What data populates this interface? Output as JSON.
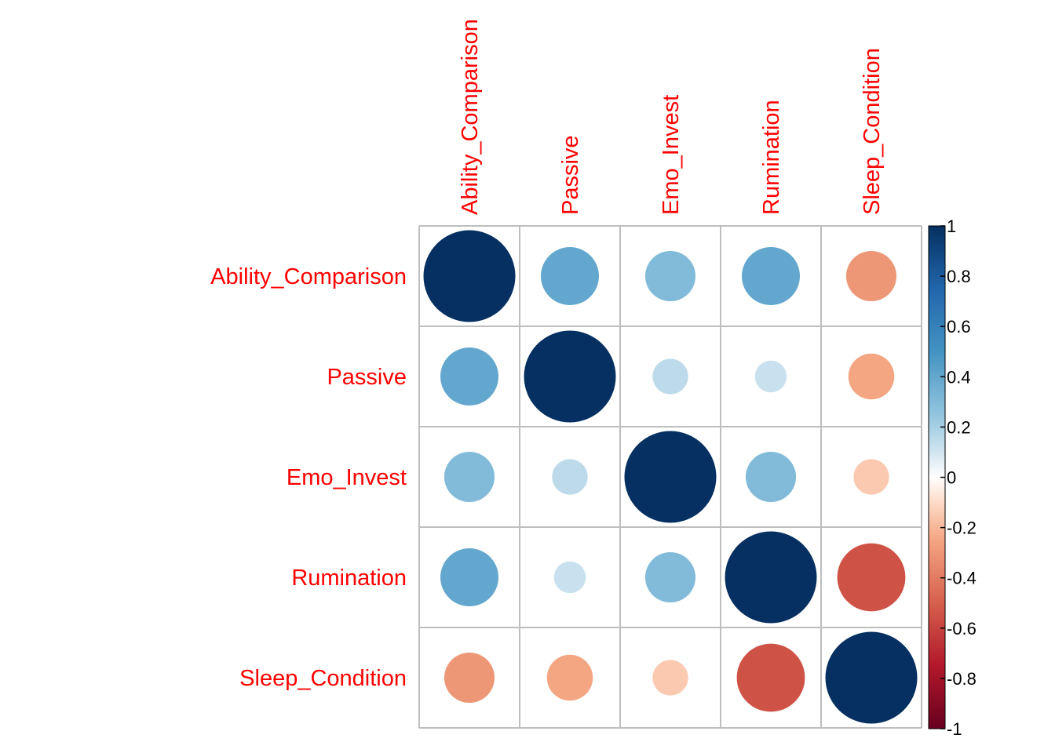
{
  "chart_data": {
    "type": "heatmap",
    "variables": [
      "Ability_Comparison",
      "Passive",
      "Emo_Invest",
      "Rumination",
      "Sleep_Condition"
    ],
    "matrix": [
      [
        1.0,
        0.4,
        0.3,
        0.4,
        -0.3
      ],
      [
        0.4,
        1.0,
        0.15,
        0.12,
        -0.25
      ],
      [
        0.3,
        0.15,
        1.0,
        0.3,
        -0.15
      ],
      [
        0.4,
        0.12,
        0.3,
        1.0,
        -0.55
      ],
      [
        -0.3,
        -0.25,
        -0.15,
        -0.55,
        1.0
      ]
    ],
    "colorbar": {
      "ticks": [
        "1",
        "0.8",
        "0.6",
        "0.4",
        "0.2",
        "0",
        "-0.2",
        "-0.4",
        "-0.6",
        "-0.8",
        "-1"
      ],
      "range": [
        -1,
        1
      ],
      "low_color": "#67001f",
      "mid_color": "#ffffff",
      "high_color": "#053061"
    },
    "label_color": "#ff0000",
    "grid_color": "#bebebe",
    "method": "circle"
  }
}
